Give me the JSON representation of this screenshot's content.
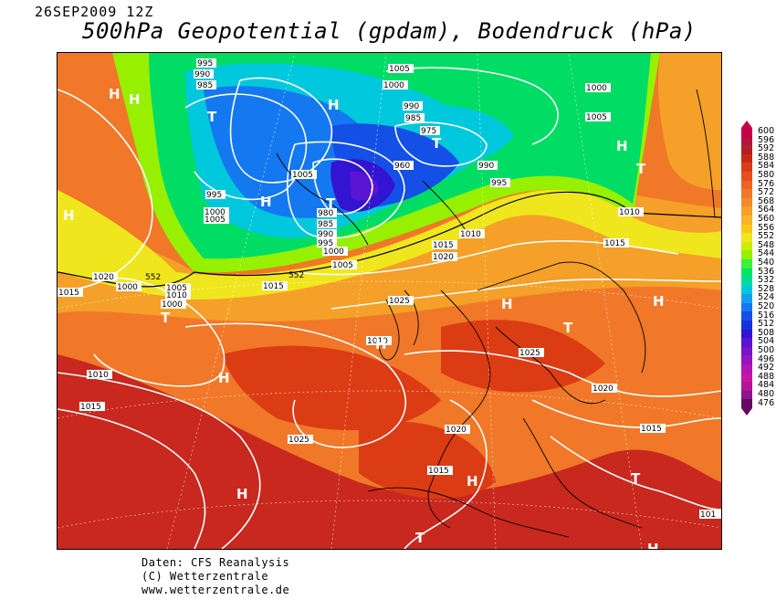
{
  "header": {
    "date": "26SEP2009 12Z",
    "title": "500hPa Geopotential (gpdam), Bodendruck (hPa)"
  },
  "legend": {
    "levels": [
      "600",
      "596",
      "592",
      "588",
      "584",
      "580",
      "576",
      "572",
      "568",
      "564",
      "560",
      "556",
      "552",
      "548",
      "544",
      "540",
      "536",
      "532",
      "528",
      "524",
      "520",
      "516",
      "512",
      "508",
      "504",
      "500",
      "496",
      "492",
      "488",
      "484",
      "480",
      "476"
    ],
    "colors": [
      "#c8004a",
      "#b4143c",
      "#b41e28",
      "#c82814",
      "#dc3c14",
      "#e6501e",
      "#f0641e",
      "#f07828",
      "#f08c28",
      "#f5a028",
      "#fab428",
      "#fac814",
      "#f0e61e",
      "#c8f000",
      "#96f000",
      "#3cf03c",
      "#00e664",
      "#00dca0",
      "#00c8dc",
      "#14a0f0",
      "#1478f0",
      "#1450e6",
      "#1432dc",
      "#3214d2",
      "#5a14d2",
      "#7814c8",
      "#9614be",
      "#b414b4",
      "#c814a0",
      "#b41496",
      "#8c148c",
      "#640a64"
    ]
  },
  "map": {
    "pressure_labels": [
      "995",
      "990",
      "985",
      "1005",
      "1000",
      "975",
      "990",
      "985",
      "1000",
      "1005",
      "1000",
      "1005",
      "1010",
      "995",
      "990",
      "960",
      "1005",
      "995",
      "1000",
      "1005",
      "980",
      "985",
      "990",
      "995",
      "1000",
      "1005",
      "1010",
      "1015",
      "1020",
      "1010",
      "1015",
      "1020",
      "1015",
      "1010",
      "1005",
      "1000",
      "1015",
      "1025",
      "1010",
      "1025",
      "1020",
      "1015",
      "1015",
      "1025",
      "1020",
      "1015",
      "1010",
      "1015",
      "101"
    ],
    "height_labels": [
      "552",
      "552"
    ],
    "pressure_centers": [
      "H",
      "H",
      "T",
      "H",
      "T",
      "H",
      "H",
      "H",
      "H",
      "T",
      "H",
      "T",
      "H",
      "T",
      "H",
      "H",
      "T",
      "H",
      "T",
      "T",
      "H"
    ]
  },
  "footer": {
    "line1": "Daten: CFS Reanalysis",
    "line2": "(C) Wetterzentrale",
    "line3": "www.wetterzentrale.de"
  }
}
